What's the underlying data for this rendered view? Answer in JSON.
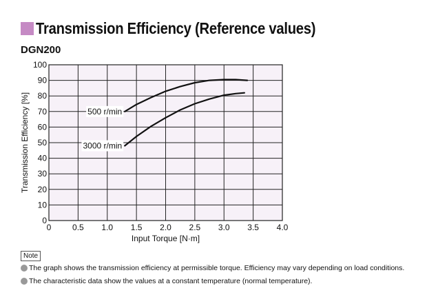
{
  "header": {
    "title": "Transmission Efficiency (Reference values)",
    "accent_color": "#c58ac4"
  },
  "model": "DGN200",
  "chart_data": {
    "type": "line",
    "title": "",
    "xlabel": "Input Torque [N·m]",
    "ylabel": "Transmission Efficiency [%]",
    "xlim": [
      0,
      4.0
    ],
    "ylim": [
      0,
      100
    ],
    "x_ticks": [
      "0",
      "0.5",
      "1.0",
      "1.5",
      "2.0",
      "2.5",
      "3.0",
      "3.5",
      "4.0"
    ],
    "y_ticks": [
      "0",
      "10",
      "20",
      "30",
      "40",
      "50",
      "60",
      "70",
      "80",
      "90",
      "100"
    ],
    "grid": true,
    "plot_background": "#f7f1f8",
    "series": [
      {
        "name": "500 r/min",
        "x": [
          1.3,
          1.5,
          1.75,
          2.0,
          2.25,
          2.5,
          2.75,
          3.0,
          3.2,
          3.4
        ],
        "y": [
          70,
          74.5,
          79,
          83,
          86,
          88.5,
          90,
          90.5,
          90.5,
          90
        ]
      },
      {
        "name": "3000 r/min",
        "x": [
          1.3,
          1.5,
          1.75,
          2.0,
          2.25,
          2.5,
          2.75,
          3.0,
          3.2,
          3.35
        ],
        "y": [
          48,
          54,
          60.5,
          66,
          71,
          75,
          78,
          80.5,
          81.5,
          82
        ]
      }
    ]
  },
  "notes": {
    "label": "Note",
    "items": [
      "The graph shows the transmission efficiency at permissible torque. Efficiency may vary depending on load conditions.",
      "The characteristic data show the values at a constant temperature (normal temperature)."
    ]
  }
}
